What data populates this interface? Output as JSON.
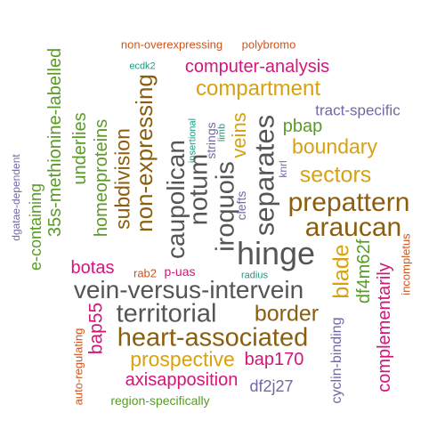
{
  "palette": {
    "gray": "#555555",
    "brown": "#8B5E0F",
    "gold": "#D9A10F",
    "magenta": "#D4157A",
    "green": "#5A9A26",
    "orange": "#D2541A",
    "purple": "#6E6AA8",
    "teal": "#1C9A7E"
  },
  "words": [
    {
      "text": "non-overexpressing",
      "color": "orange",
      "vertical": false
    },
    {
      "text": "polybromo",
      "color": "orange",
      "vertical": false
    },
    {
      "text": "ecdk2",
      "color": "teal",
      "vertical": false
    },
    {
      "text": "computer-analysis",
      "color": "magenta",
      "vertical": false
    },
    {
      "text": "compartment",
      "color": "gold",
      "vertical": false
    },
    {
      "text": "tract-specific",
      "color": "purple",
      "vertical": false
    },
    {
      "text": "pbap",
      "color": "green",
      "vertical": false
    },
    {
      "text": "boundary",
      "color": "gold",
      "vertical": false
    },
    {
      "text": "sectors",
      "color": "gold",
      "vertical": false
    },
    {
      "text": "prepattern",
      "color": "brown",
      "vertical": false
    },
    {
      "text": "araucan",
      "color": "brown",
      "vertical": false
    },
    {
      "text": "hinge",
      "color": "gray",
      "vertical": false
    },
    {
      "text": "botas",
      "color": "magenta",
      "vertical": false
    },
    {
      "text": "rab2",
      "color": "orange",
      "vertical": false
    },
    {
      "text": "p-uas",
      "color": "magenta",
      "vertical": false
    },
    {
      "text": "radius",
      "color": "teal",
      "vertical": false
    },
    {
      "text": "vein-versus-intervein",
      "color": "gray",
      "vertical": false
    },
    {
      "text": "territorial",
      "color": "gray",
      "vertical": false
    },
    {
      "text": "border",
      "color": "brown",
      "vertical": false
    },
    {
      "text": "heart-associated",
      "color": "brown",
      "vertical": false
    },
    {
      "text": "prospective",
      "color": "gold",
      "vertical": false
    },
    {
      "text": "bap170",
      "color": "magenta",
      "vertical": false
    },
    {
      "text": "axisapposition",
      "color": "magenta",
      "vertical": false
    },
    {
      "text": "df2j27",
      "color": "purple",
      "vertical": false
    },
    {
      "text": "region-specifically",
      "color": "green",
      "vertical": false
    },
    {
      "text": "35s-methionine-labelled",
      "color": "green",
      "vertical": true
    },
    {
      "text": "e-containing",
      "color": "green",
      "vertical": true
    },
    {
      "text": "dgatae-dependent",
      "color": "purple",
      "vertical": true
    },
    {
      "text": "underlies",
      "color": "green",
      "vertical": true
    },
    {
      "text": "homeoproteins",
      "color": "green",
      "vertical": true
    },
    {
      "text": "subdivision",
      "color": "brown",
      "vertical": true
    },
    {
      "text": "non-expressing",
      "color": "brown",
      "vertical": true
    },
    {
      "text": "caupolican",
      "color": "gray",
      "vertical": true
    },
    {
      "text": "notum",
      "color": "gray",
      "vertical": true
    },
    {
      "text": "iroquois",
      "color": "gray",
      "vertical": true
    },
    {
      "text": "insertional",
      "color": "teal",
      "vertical": true
    },
    {
      "text": "strings",
      "color": "purple",
      "vertical": true
    },
    {
      "text": "limb",
      "color": "teal",
      "vertical": true
    },
    {
      "text": "veins",
      "color": "gold",
      "vertical": true
    },
    {
      "text": "separates",
      "color": "gray",
      "vertical": true
    },
    {
      "text": "clefts",
      "color": "purple",
      "vertical": true
    },
    {
      "text": "knrl",
      "color": "purple",
      "vertical": true
    },
    {
      "text": "bap55",
      "color": "magenta",
      "vertical": true
    },
    {
      "text": "auto-regulating",
      "color": "orange",
      "vertical": true
    },
    {
      "text": "blade",
      "color": "gold",
      "vertical": true
    },
    {
      "text": "df4m62f",
      "color": "green",
      "vertical": true
    },
    {
      "text": "incompletus",
      "color": "orange",
      "vertical": true
    },
    {
      "text": "complementarily",
      "color": "magenta",
      "vertical": true
    },
    {
      "text": "cyclin-binding",
      "color": "purple",
      "vertical": true
    }
  ]
}
